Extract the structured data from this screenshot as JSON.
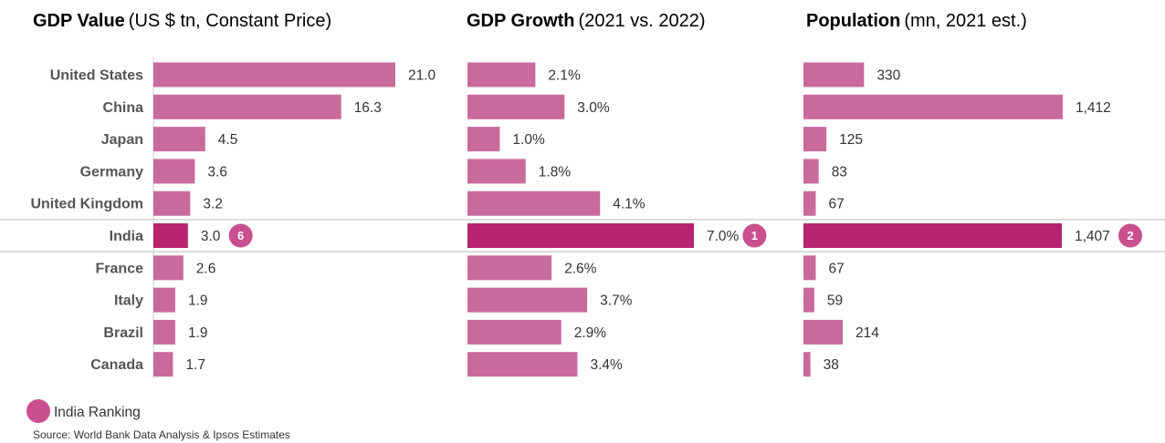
{
  "colors": {
    "bar": "#c86b9c",
    "highlight": "#b8236f",
    "badge": "#c94f8f",
    "axis": "#cccccc"
  },
  "legend_label": "India Ranking",
  "source": "Source: World Bank Data Analysis & Ipsos Estimates",
  "highlight_category": "India",
  "categories": [
    "United States",
    "China",
    "Japan",
    "Germany",
    "United Kingdom",
    "India",
    "France",
    "Italy",
    "Brazil",
    "Canada"
  ],
  "chart_data": [
    {
      "type": "bar",
      "title": "GDP Value",
      "subtitle": "(US $ tn, Constant Price)",
      "categories": [
        "United States",
        "China",
        "Japan",
        "Germany",
        "United Kingdom",
        "India",
        "France",
        "Italy",
        "Brazil",
        "Canada"
      ],
      "values": [
        21.0,
        16.3,
        4.5,
        3.6,
        3.2,
        3.0,
        2.6,
        1.9,
        1.9,
        1.7
      ],
      "labels": [
        "21.0",
        "16.3",
        "4.5",
        "3.6",
        "3.2",
        "3.0",
        "2.6",
        "1.9",
        "1.9",
        "1.7"
      ],
      "india_rank": "6"
    },
    {
      "type": "bar",
      "title": "GDP Growth",
      "subtitle": "(2021 vs. 2022)",
      "categories": [
        "United States",
        "China",
        "Japan",
        "Germany",
        "United Kingdom",
        "India",
        "France",
        "Italy",
        "Brazil",
        "Canada"
      ],
      "values": [
        2.1,
        3.0,
        1.0,
        1.8,
        4.1,
        7.0,
        2.6,
        3.7,
        2.9,
        3.4
      ],
      "labels": [
        "2.1%",
        "3.0%",
        "1.0%",
        "1.8%",
        "4.1%",
        "7.0%",
        "2.6%",
        "3.7%",
        "2.9%",
        "3.4%"
      ],
      "india_rank": "1"
    },
    {
      "type": "bar",
      "title": "Population",
      "subtitle": "(mn, 2021 est.)",
      "categories": [
        "United States",
        "China",
        "Japan",
        "Germany",
        "United Kingdom",
        "India",
        "France",
        "Italy",
        "Brazil",
        "Canada"
      ],
      "values": [
        330,
        1412,
        125,
        83,
        67,
        1407,
        67,
        59,
        214,
        38
      ],
      "labels": [
        "330",
        "1,412",
        "125",
        "83",
        "67",
        "1,407",
        "67",
        "59",
        "214",
        "38"
      ],
      "india_rank": "2"
    }
  ]
}
